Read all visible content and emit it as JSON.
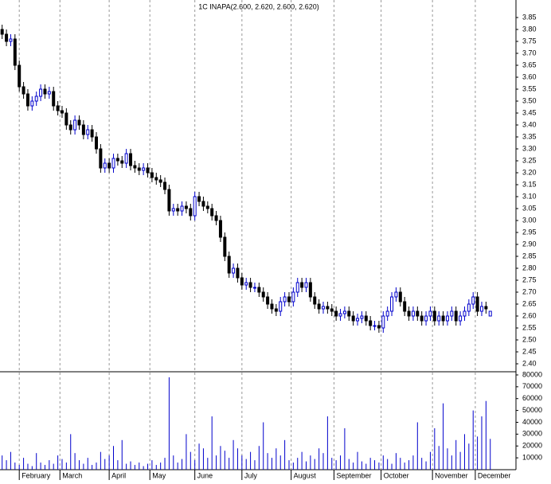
{
  "chart_data": {
    "type": "candlestick",
    "title": "1C INAPA(2.600, 2.620, 2.600, 2.620)",
    "up_color": "#0000cc",
    "down_color": "#000000",
    "grid": true,
    "xlim": [
      -1,
      240
    ],
    "xticks": [
      {
        "value": 8,
        "label": "February"
      },
      {
        "value": 27,
        "label": "March"
      },
      {
        "value": 50,
        "label": "April"
      },
      {
        "value": 69,
        "label": "May"
      },
      {
        "value": 90,
        "label": "June"
      },
      {
        "value": 112,
        "label": "July"
      },
      {
        "value": 135,
        "label": "August"
      },
      {
        "value": 155,
        "label": "September"
      },
      {
        "value": 177,
        "label": "October"
      },
      {
        "value": 201,
        "label": "November"
      },
      {
        "value": 221,
        "label": "December"
      }
    ],
    "ylim": [
      2.37,
      3.88
    ],
    "yticks": [
      {
        "value": 2.4,
        "label": "2.40"
      },
      2.45,
      {
        "value": 2.5,
        "label": "2.50"
      },
      2.55,
      {
        "value": 2.6,
        "label": "2.60"
      },
      2.65,
      {
        "value": 2.7,
        "label": "2.70"
      },
      2.75,
      {
        "value": 2.8,
        "label": "2.80"
      },
      2.85,
      {
        "value": 2.9,
        "label": "2.90"
      },
      2.95,
      {
        "value": 3.0,
        "label": "3.00"
      },
      3.05,
      {
        "value": 3.1,
        "label": "3.10"
      },
      3.15,
      {
        "value": 3.2,
        "label": "3.20"
      },
      3.25,
      {
        "value": 3.3,
        "label": "3.30"
      },
      3.35,
      {
        "value": 3.4,
        "label": "3.40"
      },
      3.45,
      {
        "value": 3.5,
        "label": "3.50"
      },
      3.55,
      {
        "value": 3.6,
        "label": "3.60"
      },
      3.65,
      {
        "value": 3.7,
        "label": "3.70"
      },
      3.75,
      {
        "value": 3.8,
        "label": "3.80"
      },
      3.85
    ],
    "x": [
      0,
      2,
      4,
      6,
      8,
      10,
      12,
      14,
      16,
      18,
      20,
      22,
      24,
      26,
      28,
      30,
      32,
      34,
      36,
      38,
      40,
      42,
      44,
      46,
      48,
      50,
      52,
      54,
      56,
      58,
      60,
      62,
      64,
      66,
      68,
      70,
      72,
      74,
      76,
      78,
      80,
      82,
      84,
      86,
      88,
      90,
      92,
      94,
      96,
      98,
      100,
      102,
      104,
      106,
      108,
      110,
      112,
      114,
      116,
      118,
      120,
      122,
      124,
      126,
      128,
      130,
      132,
      134,
      136,
      138,
      140,
      142,
      144,
      146,
      148,
      150,
      152,
      154,
      156,
      158,
      160,
      162,
      164,
      166,
      168,
      170,
      172,
      174,
      176,
      178,
      180,
      182,
      184,
      186,
      188,
      190,
      192,
      194,
      196,
      198,
      200,
      202,
      204,
      206,
      208,
      210,
      212,
      214,
      216,
      218,
      220,
      222,
      224,
      226,
      228
    ],
    "open": [
      3.8,
      3.78,
      3.75,
      3.76,
      3.65,
      3.56,
      3.53,
      3.48,
      3.5,
      3.52,
      3.55,
      3.53,
      3.54,
      3.48,
      3.46,
      3.45,
      3.4,
      3.38,
      3.42,
      3.4,
      3.36,
      3.38,
      3.35,
      3.3,
      3.22,
      3.24,
      3.22,
      3.26,
      3.25,
      3.24,
      3.28,
      3.23,
      3.22,
      3.21,
      3.22,
      3.2,
      3.18,
      3.17,
      3.16,
      3.13,
      3.04,
      3.05,
      3.04,
      3.06,
      3.05,
      3.02,
      3.1,
      3.08,
      3.06,
      3.05,
      3.02,
      3.0,
      2.93,
      2.85,
      2.78,
      2.8,
      2.76,
      2.73,
      2.74,
      2.72,
      2.72,
      2.7,
      2.68,
      2.65,
      2.63,
      2.62,
      2.66,
      2.68,
      2.66,
      2.7,
      2.74,
      2.72,
      2.74,
      2.68,
      2.65,
      2.63,
      2.64,
      2.63,
      2.62,
      2.6,
      2.61,
      2.62,
      2.6,
      2.58,
      2.59,
      2.6,
      2.58,
      2.56,
      2.56,
      2.55,
      2.6,
      2.62,
      2.68,
      2.7,
      2.66,
      2.62,
      2.6,
      2.62,
      2.6,
      2.58,
      2.6,
      2.62,
      2.58,
      2.6,
      2.58,
      2.6,
      2.62,
      2.58,
      2.6,
      2.62,
      2.65,
      2.68,
      2.62,
      2.64,
      2.6
    ],
    "high": [
      3.82,
      3.8,
      3.78,
      3.78,
      3.67,
      3.58,
      3.55,
      3.52,
      3.54,
      3.57,
      3.57,
      3.56,
      3.56,
      3.5,
      3.48,
      3.47,
      3.42,
      3.44,
      3.44,
      3.42,
      3.4,
      3.4,
      3.37,
      3.32,
      3.26,
      3.26,
      3.28,
      3.28,
      3.27,
      3.3,
      3.3,
      3.25,
      3.24,
      3.24,
      3.24,
      3.22,
      3.2,
      3.19,
      3.18,
      3.15,
      3.07,
      3.07,
      3.08,
      3.08,
      3.07,
      3.12,
      3.12,
      3.1,
      3.08,
      3.07,
      3.04,
      3.02,
      2.95,
      2.87,
      2.82,
      2.82,
      2.78,
      2.76,
      2.76,
      2.74,
      2.74,
      2.72,
      2.7,
      2.67,
      2.65,
      2.68,
      2.7,
      2.7,
      2.72,
      2.76,
      2.76,
      2.76,
      2.76,
      2.7,
      2.67,
      2.66,
      2.66,
      2.65,
      2.64,
      2.63,
      2.64,
      2.64,
      2.62,
      2.61,
      2.62,
      2.62,
      2.6,
      2.58,
      2.58,
      2.62,
      2.64,
      2.7,
      2.72,
      2.72,
      2.68,
      2.64,
      2.64,
      2.64,
      2.62,
      2.62,
      2.64,
      2.64,
      2.62,
      2.62,
      2.62,
      2.64,
      2.64,
      2.62,
      2.64,
      2.67,
      2.7,
      2.7,
      2.66,
      2.66,
      2.62
    ],
    "low": [
      3.76,
      3.73,
      3.73,
      3.63,
      3.54,
      3.51,
      3.46,
      3.46,
      3.48,
      3.5,
      3.51,
      3.51,
      3.46,
      3.44,
      3.43,
      3.38,
      3.36,
      3.36,
      3.38,
      3.34,
      3.34,
      3.33,
      3.28,
      3.2,
      3.2,
      3.2,
      3.2,
      3.23,
      3.22,
      3.22,
      3.21,
      3.2,
      3.19,
      3.19,
      3.18,
      3.16,
      3.15,
      3.14,
      3.11,
      3.02,
      3.02,
      3.02,
      3.02,
      3.03,
      3.0,
      3.0,
      3.06,
      3.04,
      3.03,
      3.0,
      2.98,
      2.91,
      2.83,
      2.76,
      2.76,
      2.74,
      2.71,
      2.71,
      2.7,
      2.7,
      2.68,
      2.66,
      2.63,
      2.61,
      2.6,
      2.6,
      2.64,
      2.64,
      2.64,
      2.68,
      2.7,
      2.7,
      2.66,
      2.63,
      2.61,
      2.61,
      2.61,
      2.6,
      2.58,
      2.58,
      2.59,
      2.58,
      2.56,
      2.56,
      2.57,
      2.56,
      2.54,
      2.54,
      2.53,
      2.53,
      2.58,
      2.6,
      2.66,
      2.64,
      2.6,
      2.58,
      2.58,
      2.58,
      2.56,
      2.56,
      2.58,
      2.56,
      2.56,
      2.56,
      2.56,
      2.58,
      2.56,
      2.56,
      2.58,
      2.6,
      2.63,
      2.6,
      2.6,
      2.61,
      2.6
    ],
    "close": [
      3.78,
      3.75,
      3.76,
      3.65,
      3.56,
      3.53,
      3.48,
      3.5,
      3.52,
      3.55,
      3.53,
      3.54,
      3.48,
      3.46,
      3.45,
      3.4,
      3.38,
      3.42,
      3.4,
      3.36,
      3.38,
      3.35,
      3.3,
      3.22,
      3.24,
      3.22,
      3.26,
      3.25,
      3.24,
      3.28,
      3.23,
      3.22,
      3.21,
      3.22,
      3.2,
      3.18,
      3.17,
      3.16,
      3.13,
      3.04,
      3.05,
      3.04,
      3.06,
      3.05,
      3.02,
      3.1,
      3.08,
      3.06,
      3.05,
      3.02,
      3.0,
      2.93,
      2.85,
      2.78,
      2.8,
      2.76,
      2.73,
      2.74,
      2.72,
      2.72,
      2.7,
      2.68,
      2.65,
      2.63,
      2.62,
      2.66,
      2.68,
      2.66,
      2.7,
      2.74,
      2.72,
      2.74,
      2.68,
      2.65,
      2.63,
      2.64,
      2.63,
      2.62,
      2.6,
      2.61,
      2.62,
      2.6,
      2.58,
      2.59,
      2.6,
      2.58,
      2.56,
      2.56,
      2.55,
      2.6,
      2.62,
      2.68,
      2.7,
      2.66,
      2.62,
      2.6,
      2.62,
      2.6,
      2.58,
      2.6,
      2.62,
      2.58,
      2.6,
      2.58,
      2.6,
      2.62,
      2.58,
      2.6,
      2.62,
      2.65,
      2.68,
      2.62,
      2.64,
      2.63,
      2.62
    ],
    "volume": {
      "color": "#0000cc",
      "ylim": [
        0,
        82000
      ],
      "yticks": [
        10000,
        20000,
        30000,
        40000,
        50000,
        60000,
        70000,
        80000
      ],
      "values": [
        12000,
        8000,
        15000,
        6000,
        4000,
        10000,
        5000,
        3000,
        14000,
        6000,
        4000,
        8000,
        5000,
        12000,
        9000,
        6000,
        30000,
        14000,
        8000,
        5000,
        10000,
        4000,
        6000,
        15000,
        9000,
        12000,
        20000,
        8000,
        25000,
        5000,
        7000,
        4000,
        6000,
        3000,
        5000,
        8000,
        4000,
        6000,
        10000,
        78000,
        12000,
        6000,
        9000,
        30000,
        15000,
        8000,
        22000,
        18000,
        10000,
        45000,
        12000,
        20000,
        16000,
        10000,
        25000,
        18000,
        12000,
        9000,
        15000,
        8000,
        20000,
        40000,
        14000,
        10000,
        18000,
        12000,
        25000,
        8000,
        6000,
        10000,
        15000,
        7000,
        12000,
        9000,
        18000,
        14000,
        45000,
        10000,
        8000,
        12000,
        35000,
        9000,
        6000,
        15000,
        7000,
        5000,
        10000,
        8000,
        6000,
        12000,
        9000,
        5000,
        14000,
        10000,
        6000,
        8000,
        12000,
        40000,
        10000,
        7000,
        15000,
        35000,
        20000,
        56000,
        18000,
        12000,
        25000,
        15000,
        30000,
        22000,
        50000,
        28000,
        45000,
        58000,
        26000
      ]
    }
  }
}
